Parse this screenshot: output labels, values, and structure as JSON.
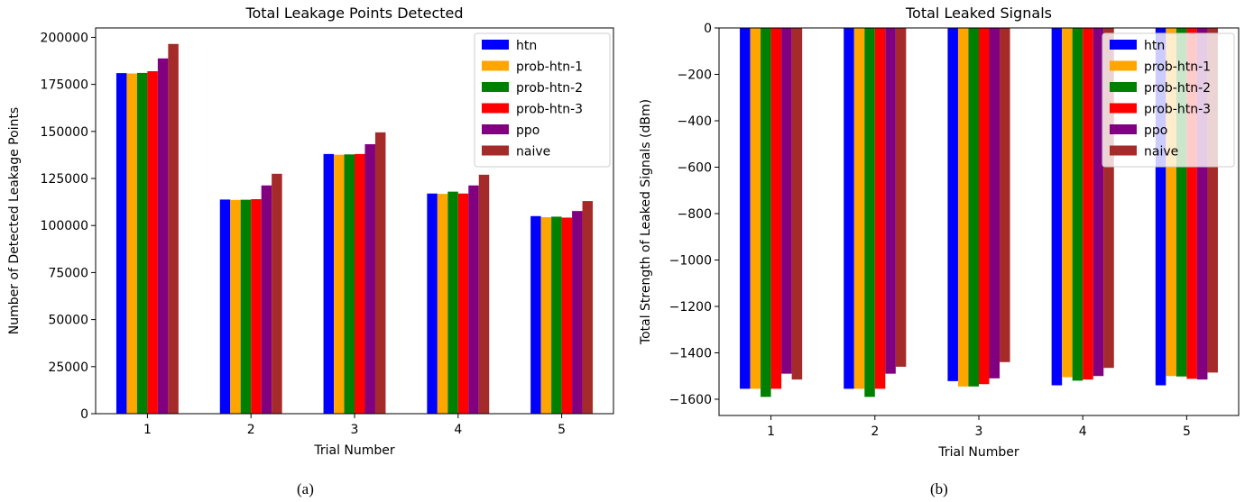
{
  "chart_data": [
    {
      "type": "bar",
      "title": "Total Leakage Points Detected",
      "xlabel": "Trial Number",
      "ylabel": "Number of Detected Leakage Points",
      "categories": [
        "1",
        "2",
        "3",
        "4",
        "5"
      ],
      "ylim": [
        0,
        205000
      ],
      "yticks": [
        0,
        25000,
        50000,
        75000,
        100000,
        125000,
        150000,
        175000,
        200000
      ],
      "legend_position": "top-right",
      "series": [
        {
          "name": "htn",
          "color": "#0000ff",
          "values": [
            181000,
            113800,
            138000,
            117000,
            105000
          ]
        },
        {
          "name": "prob-htn-1",
          "color": "#ffa500",
          "values": [
            180800,
            113600,
            137600,
            116800,
            104400
          ]
        },
        {
          "name": "prob-htn-2",
          "color": "#008000",
          "values": [
            181100,
            113700,
            137800,
            118000,
            104700
          ]
        },
        {
          "name": "prob-htn-3",
          "color": "#ff0000",
          "values": [
            182000,
            114000,
            138000,
            117000,
            104200
          ]
        },
        {
          "name": "ppo",
          "color": "#800080",
          "values": [
            188800,
            121300,
            143200,
            121300,
            107700
          ]
        },
        {
          "name": "naive",
          "color": "#a52a2a",
          "values": [
            196500,
            127500,
            149500,
            127000,
            113000
          ]
        }
      ]
    },
    {
      "type": "bar",
      "title": "Total Leaked Signals",
      "xlabel": "Trial Number",
      "ylabel": "Total Strength of Leaked Signals (dBm)",
      "categories": [
        "1",
        "2",
        "3",
        "4",
        "5"
      ],
      "ylim": [
        -1670,
        0
      ],
      "yticks": [
        0,
        -200,
        -400,
        -600,
        -800,
        -1000,
        -1200,
        -1400,
        -1600
      ],
      "legend_position": "top-right",
      "series": [
        {
          "name": "htn",
          "color": "#0000ff",
          "values": [
            -1555,
            -1555,
            -1522,
            -1540,
            -1540
          ]
        },
        {
          "name": "prob-htn-1",
          "color": "#ffa500",
          "values": [
            -1555,
            -1555,
            -1545,
            -1505,
            -1500
          ]
        },
        {
          "name": "prob-htn-2",
          "color": "#008000",
          "values": [
            -1590,
            -1590,
            -1545,
            -1520,
            -1502
          ]
        },
        {
          "name": "prob-htn-3",
          "color": "#ff0000",
          "values": [
            -1555,
            -1555,
            -1535,
            -1515,
            -1512
          ]
        },
        {
          "name": "ppo",
          "color": "#800080",
          "values": [
            -1490,
            -1490,
            -1510,
            -1500,
            -1515
          ]
        },
        {
          "name": "naive",
          "color": "#a52a2a",
          "values": [
            -1515,
            -1460,
            -1440,
            -1465,
            -1485
          ]
        }
      ]
    }
  ],
  "captions": {
    "left": "(a)",
    "right": "(b)"
  }
}
